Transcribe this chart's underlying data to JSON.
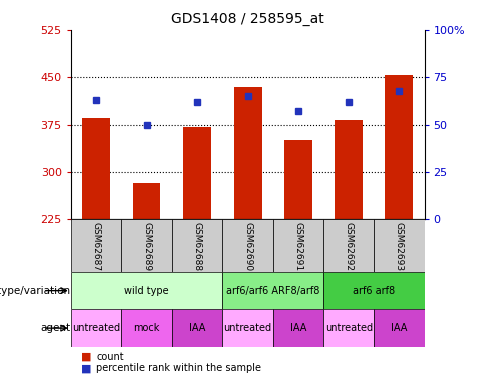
{
  "title": "GDS1408 / 258595_at",
  "samples": [
    "GSM62687",
    "GSM62689",
    "GSM62688",
    "GSM62690",
    "GSM62691",
    "GSM62692",
    "GSM62693"
  ],
  "counts": [
    385,
    282,
    372,
    435,
    350,
    382,
    453
  ],
  "percentiles": [
    63,
    50,
    62,
    65,
    57,
    62,
    68
  ],
  "ymin": 225,
  "ymax": 525,
  "yticks": [
    225,
    300,
    375,
    450,
    525
  ],
  "right_yticks": [
    0,
    25,
    50,
    75,
    100
  ],
  "right_ytick_labels": [
    "0",
    "25",
    "50",
    "75",
    "100%"
  ],
  "bar_color": "#cc2200",
  "dot_color": "#2233bb",
  "bar_width": 0.55,
  "genotype_groups": [
    {
      "label": "wild type",
      "start": 0,
      "end": 3,
      "color": "#ccffcc"
    },
    {
      "label": "arf6/arf6 ARF8/arf8",
      "start": 3,
      "end": 5,
      "color": "#88ee88"
    },
    {
      "label": "arf6 arf8",
      "start": 5,
      "end": 7,
      "color": "#44cc44"
    }
  ],
  "agent_groups": [
    {
      "label": "untreated",
      "start": 0,
      "end": 1,
      "color": "#ffaaff"
    },
    {
      "label": "mock",
      "start": 1,
      "end": 2,
      "color": "#ee66ee"
    },
    {
      "label": "IAA",
      "start": 2,
      "end": 3,
      "color": "#cc44cc"
    },
    {
      "label": "untreated",
      "start": 3,
      "end": 4,
      "color": "#ffaaff"
    },
    {
      "label": "IAA",
      "start": 4,
      "end": 5,
      "color": "#cc44cc"
    },
    {
      "label": "untreated",
      "start": 5,
      "end": 6,
      "color": "#ffaaff"
    },
    {
      "label": "IAA",
      "start": 6,
      "end": 7,
      "color": "#cc44cc"
    }
  ],
  "legend_count_color": "#cc2200",
  "legend_dot_color": "#2233bb",
  "row_label_genotype": "genotype/variation",
  "row_label_agent": "agent",
  "left_ytick_color": "#cc0000",
  "right_ytick_color": "#0000cc",
  "sample_label_bg": "#cccccc",
  "n_samples": 7
}
